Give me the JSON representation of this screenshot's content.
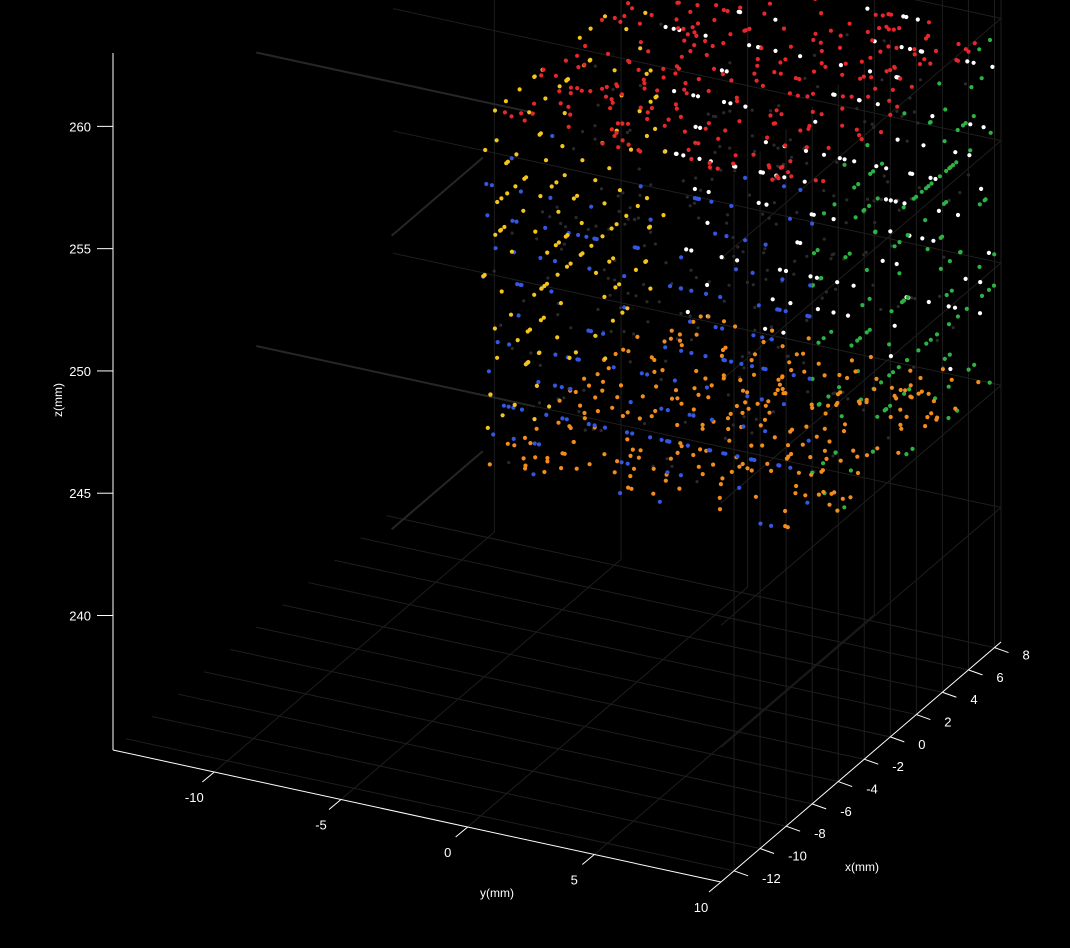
{
  "chart_data": {
    "type": "scatter",
    "projection": "3d",
    "background": "#000000",
    "xlabel": "x(mm)",
    "ylabel": "y(mm)",
    "zlabel": "z(mm)",
    "xlim": [
      -13,
      8.5
    ],
    "ylim": [
      -14,
      10
    ],
    "zlim": [
      234.5,
      263
    ],
    "x_ticks": [
      -12,
      -10,
      -8,
      -6,
      -4,
      -2,
      0,
      2,
      4,
      6,
      8
    ],
    "y_ticks": [
      -10,
      -5,
      0,
      5,
      10
    ],
    "z_ticks": [
      240,
      245,
      250,
      255,
      260
    ],
    "grid": true,
    "legend": "none",
    "cube": {
      "x_range": [
        -6,
        8
      ],
      "y_range": [
        -3,
        10
      ],
      "z_range": [
        245.5,
        259.5
      ]
    },
    "series": [
      {
        "face": "top (z = 259.5)",
        "color": "#e8272a"
      },
      {
        "face": "bottom (z = 245.5)",
        "color": "#f28c1c"
      },
      {
        "face": "front x = -6",
        "color": "#3456e0"
      },
      {
        "face": "back x = 8",
        "color": "#ffffff"
      },
      {
        "face": "front y = -3",
        "color": "#f4c51c"
      },
      {
        "face": "back y = 10",
        "color": "#2cb344"
      }
    ],
    "inner_points_color": "#2a2a2a"
  }
}
